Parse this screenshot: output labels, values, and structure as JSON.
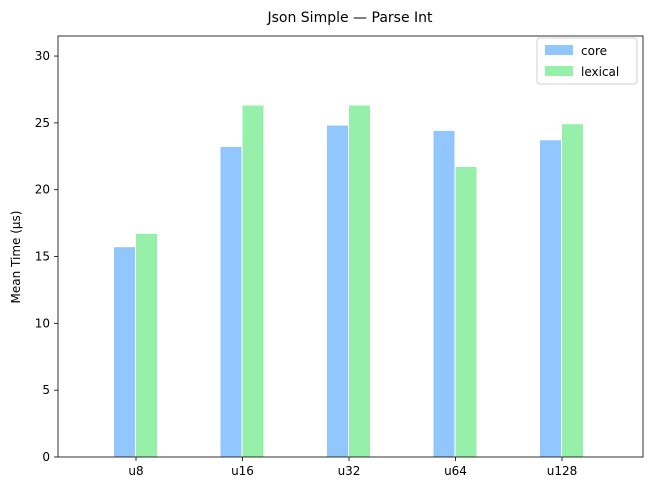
{
  "chart_data": {
    "type": "bar",
    "title": "Json Simple — Parse Int",
    "xlabel": "",
    "ylabel": "Mean Time (µs)",
    "categories": [
      "u8",
      "u16",
      "u32",
      "u64",
      "u128"
    ],
    "series": [
      {
        "name": "core",
        "color": "#92c6ff",
        "values": [
          15.7,
          23.2,
          24.8,
          24.4,
          23.7
        ]
      },
      {
        "name": "lexical",
        "color": "#97f0aa",
        "values": [
          16.7,
          26.3,
          26.3,
          21.7,
          24.9
        ]
      }
    ],
    "ylim": [
      0,
      31.5
    ],
    "yticks": [
      0,
      5,
      10,
      15,
      20,
      25,
      30
    ],
    "grid": false,
    "legend": "top-right"
  }
}
